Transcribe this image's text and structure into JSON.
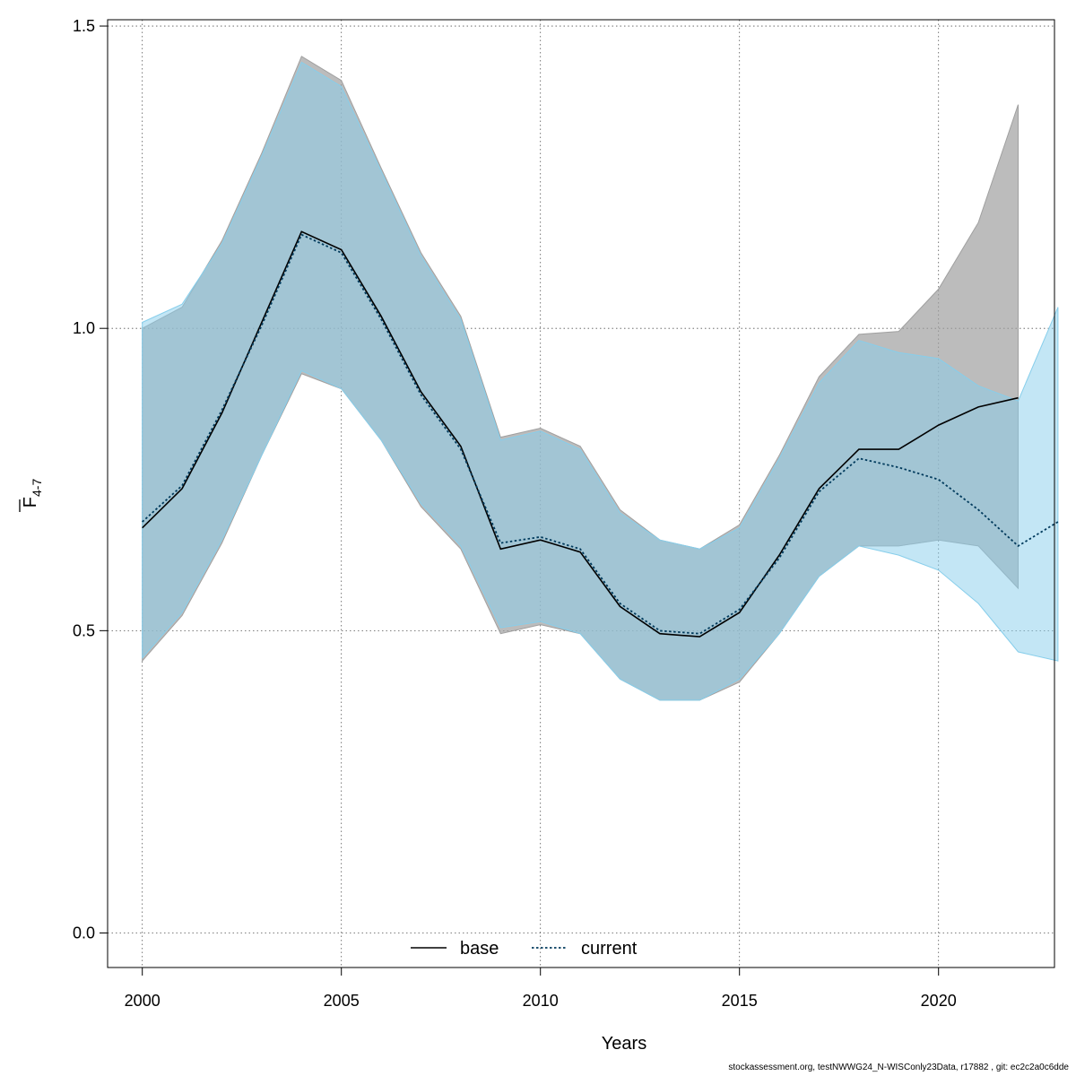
{
  "chart_data": {
    "type": "line",
    "title": "",
    "xlabel": "Years",
    "ylabel": {
      "main": "F",
      "sub": "4-7"
    },
    "xlim": [
      2000,
      2023
    ],
    "ylim": [
      0,
      1.5
    ],
    "x_ticks": [
      2000,
      2005,
      2010,
      2015,
      2020
    ],
    "y_ticks": [
      0.0,
      0.5,
      1.0,
      1.5
    ],
    "y_tick_labels": [
      "0.0",
      "0.5",
      "1.0",
      "1.5"
    ],
    "grid": true,
    "legend_position": "bottom-center",
    "series": [
      {
        "name": "base",
        "line_style": "solid",
        "line_color": "#000000",
        "band_color": "#a0a0a0",
        "x": [
          2000,
          2001,
          2002,
          2003,
          2004,
          2005,
          2006,
          2007,
          2008,
          2009,
          2010,
          2011,
          2012,
          2013,
          2014,
          2015,
          2016,
          2017,
          2018,
          2019,
          2020,
          2021,
          2022
        ],
        "values": [
          0.67,
          0.735,
          0.86,
          1.01,
          1.16,
          1.13,
          1.02,
          0.895,
          0.805,
          0.635,
          0.65,
          0.63,
          0.54,
          0.495,
          0.49,
          0.53,
          0.625,
          0.735,
          0.8,
          0.8,
          0.84,
          0.87,
          0.885
        ],
        "lower": [
          0.45,
          0.525,
          0.645,
          0.79,
          0.925,
          0.9,
          0.815,
          0.705,
          0.635,
          0.495,
          0.51,
          0.495,
          0.42,
          0.385,
          0.385,
          0.415,
          0.495,
          0.59,
          0.64,
          0.64,
          0.65,
          0.64,
          0.57
        ],
        "upper": [
          1.0,
          1.035,
          1.145,
          1.29,
          1.45,
          1.41,
          1.265,
          1.125,
          1.02,
          0.82,
          0.835,
          0.805,
          0.7,
          0.65,
          0.635,
          0.675,
          0.79,
          0.92,
          0.99,
          0.995,
          1.065,
          1.175,
          1.37
        ]
      },
      {
        "name": "current",
        "line_style": "dotted",
        "line_color": "#003a5c",
        "band_color": "#87ceeb",
        "x": [
          2000,
          2001,
          2002,
          2003,
          2004,
          2005,
          2006,
          2007,
          2008,
          2009,
          2010,
          2011,
          2012,
          2013,
          2014,
          2015,
          2016,
          2017,
          2018,
          2019,
          2020,
          2021,
          2022,
          2023
        ],
        "values": [
          0.68,
          0.74,
          0.865,
          1.005,
          1.155,
          1.125,
          1.015,
          0.89,
          0.8,
          0.645,
          0.655,
          0.635,
          0.545,
          0.5,
          0.495,
          0.535,
          0.62,
          0.73,
          0.785,
          0.77,
          0.75,
          0.7,
          0.64,
          0.68
        ],
        "lower": [
          0.455,
          0.53,
          0.65,
          0.79,
          0.93,
          0.9,
          0.815,
          0.71,
          0.64,
          0.505,
          0.515,
          0.495,
          0.42,
          0.385,
          0.385,
          0.42,
          0.495,
          0.59,
          0.64,
          0.625,
          0.6,
          0.545,
          0.465,
          0.45
        ],
        "upper": [
          1.01,
          1.04,
          1.14,
          1.285,
          1.44,
          1.4,
          1.26,
          1.12,
          1.015,
          0.815,
          0.83,
          0.8,
          0.695,
          0.65,
          0.635,
          0.67,
          0.785,
          0.91,
          0.98,
          0.96,
          0.95,
          0.905,
          0.88,
          1.035
        ]
      }
    ]
  },
  "footer": "stockassessment.org, testNWWG24_N-WISConly23Data, r17882 , git: ec2c2a0c6dde"
}
